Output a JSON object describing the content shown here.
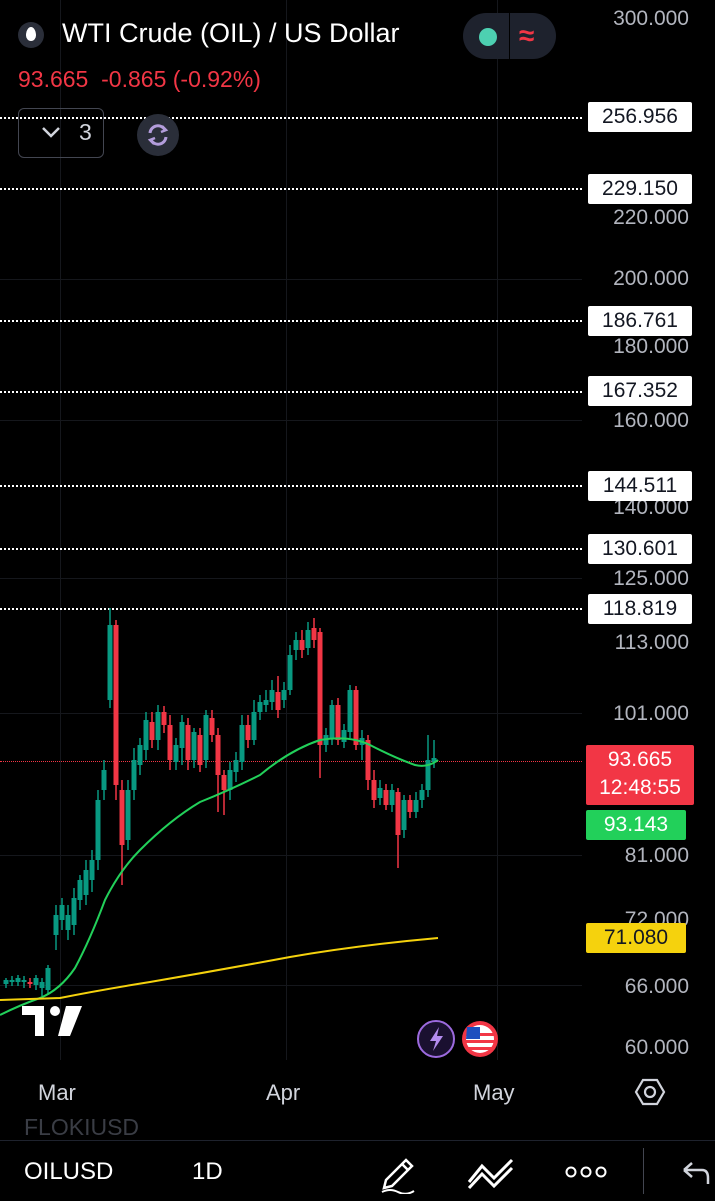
{
  "header": {
    "title": "WTI Crude (OIL) / US Dollar",
    "price": "93.665",
    "change": "-0.865 (-0.92%)",
    "indicator_count": "3"
  },
  "price_axis": {
    "labels": [
      "300.000",
      "220.000",
      "200.000",
      "180.000",
      "160.000",
      "140.000",
      "125.000",
      "113.000",
      "101.000",
      "81.000",
      "72.000",
      "66.000",
      "60.000"
    ]
  },
  "alert_lines": [
    "256.956",
    "229.150",
    "186.761",
    "167.352",
    "144.511",
    "130.601",
    "118.819"
  ],
  "current_price": {
    "value": "93.665",
    "countdown": "12:48:55",
    "color": "#f23645"
  },
  "ma_fast": {
    "value": "93.143",
    "color": "#22d05a"
  },
  "ma_slow": {
    "value": "71.080",
    "color": "#f5d20d"
  },
  "time_axis": {
    "labels": [
      "Mar",
      "Apr",
      "May"
    ]
  },
  "footer": {
    "symbol": "OILUSD",
    "interval": "1D",
    "ghost_symbol": "FLOKIUSD"
  },
  "icons": [
    "drop-icon",
    "sync-icon",
    "gear-icon",
    "pencil-icon",
    "draw-tool-icon",
    "more-icon",
    "undo-icon",
    "flash-icon",
    "us-flag-icon",
    "tradingview-logo"
  ]
}
